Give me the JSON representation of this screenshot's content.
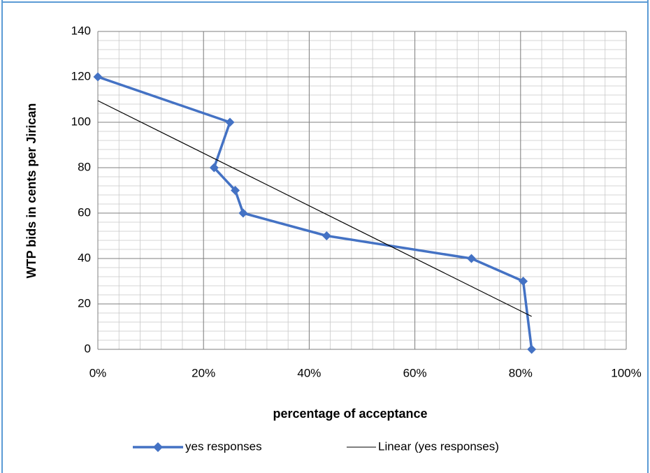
{
  "chart_data": {
    "type": "line",
    "xlabel": "percentage of acceptance",
    "ylabel": "WTP bids in cents per Jirican",
    "xlim": [
      0,
      100
    ],
    "ylim": [
      0,
      140
    ],
    "x_ticks": [
      "0%",
      "20%",
      "40%",
      "60%",
      "80%",
      "100%"
    ],
    "y_ticks": [
      "0",
      "20",
      "40",
      "60",
      "80",
      "100",
      "120",
      "140"
    ],
    "grid": true,
    "legend_position": "bottom",
    "series": [
      {
        "name": "yes responses",
        "color": "#4472c4",
        "marker": "diamond",
        "points": [
          {
            "x": 0,
            "y": 120
          },
          {
            "x": 25,
            "y": 100
          },
          {
            "x": 22,
            "y": 80
          },
          {
            "x": 26,
            "y": 70
          },
          {
            "x": 27.5,
            "y": 60
          },
          {
            "x": 43.3,
            "y": 50
          },
          {
            "x": 70.7,
            "y": 40
          },
          {
            "x": 80.5,
            "y": 30
          },
          {
            "x": 82.1,
            "y": 0
          }
        ]
      },
      {
        "name": "Linear (yes responses)",
        "color": "#000000",
        "trendline": true,
        "points": [
          {
            "x": 0,
            "y": 109.5
          },
          {
            "x": 82.1,
            "y": 14.5
          }
        ]
      }
    ]
  }
}
